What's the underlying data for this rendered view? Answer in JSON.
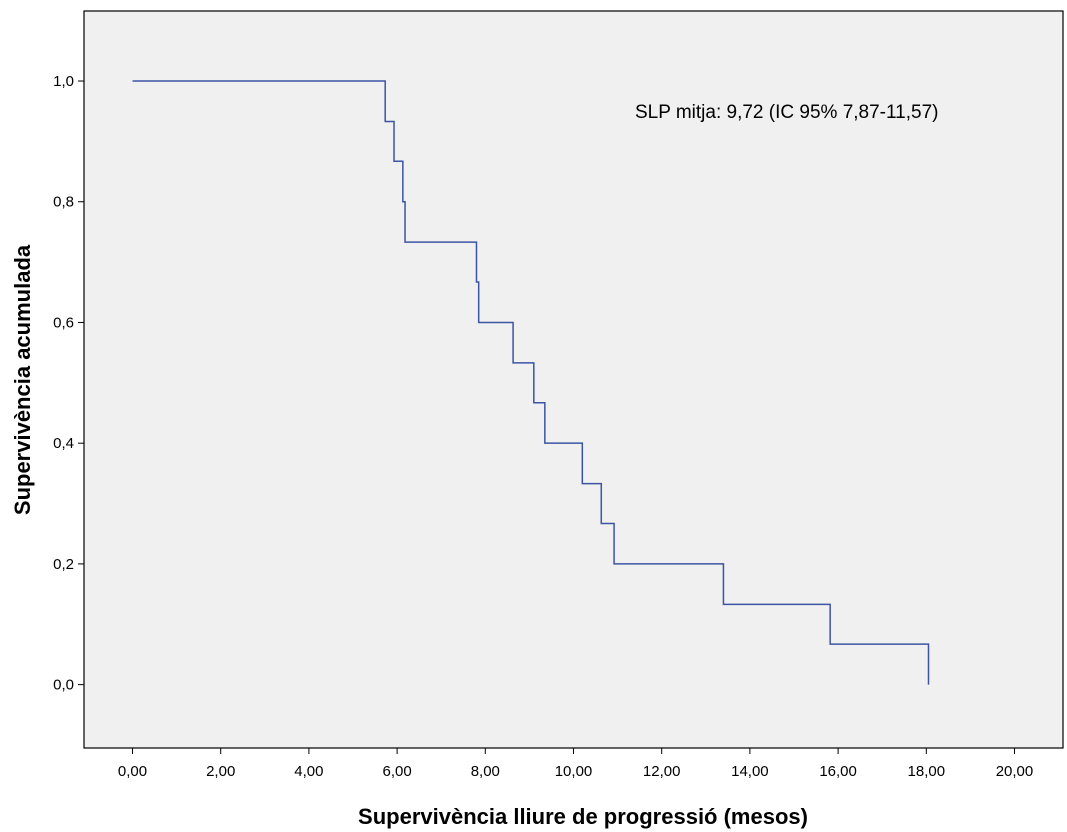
{
  "chart_data": {
    "type": "line",
    "subtype": "step",
    "xlabel": "Supervivència lliure de progressió (mesos)",
    "ylabel": "Supervivència acumulada",
    "annotation": "SLP mitja: 9,72 (IC 95% 7,87-11,57)",
    "xlim": [
      -1.1,
      21.1
    ],
    "ylim": [
      -0.105,
      1.116
    ],
    "x_ticks": [
      0,
      2,
      4,
      6,
      8,
      10,
      12,
      14,
      16,
      18,
      20
    ],
    "x_tick_labels": [
      "0,00",
      "2,00",
      "4,00",
      "6,00",
      "8,00",
      "10,00",
      "12,00",
      "14,00",
      "16,00",
      "18,00",
      "20,00"
    ],
    "y_ticks": [
      0,
      0.2,
      0.4,
      0.6,
      0.8,
      1.0
    ],
    "y_tick_labels": [
      "0,0",
      "0,2",
      "0,4",
      "0,6",
      "0,8",
      "1,0"
    ],
    "grid": false,
    "legend": "none",
    "colors": {
      "plot_background": "#f0f0f0",
      "line": "#3c54a4",
      "axis": "#000000"
    },
    "series": [
      {
        "x": [
          0,
          5.73,
          5.93,
          6.13,
          6.18,
          7.8,
          7.85,
          8.63,
          9.1,
          9.35,
          10.2,
          10.63,
          10.92,
          13.4,
          15.82,
          18.05
        ],
        "y": [
          1.0,
          0.933,
          0.867,
          0.8,
          0.733,
          0.667,
          0.6,
          0.533,
          0.467,
          0.4,
          0.333,
          0.267,
          0.2,
          0.133,
          0.067,
          0.0
        ]
      }
    ]
  }
}
